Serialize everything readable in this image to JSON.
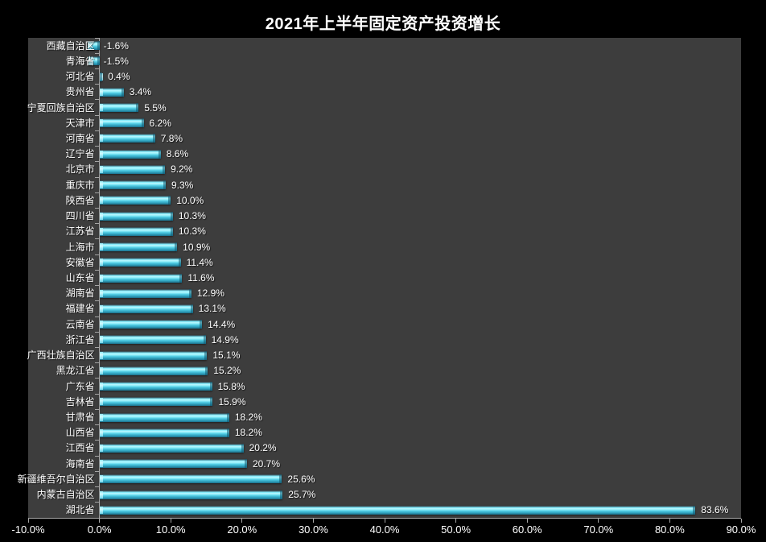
{
  "window": {
    "background": "#000000"
  },
  "chart_data": {
    "type": "bar",
    "orientation": "horizontal",
    "title": "2021年上半年固定资产投资增长",
    "xlabel": "",
    "ylabel": "",
    "grid": false,
    "legend": null,
    "categories": [
      "西藏自治区",
      "青海省",
      "河北省",
      "贵州省",
      "宁夏回族自治区",
      "天津市",
      "河南省",
      "辽宁省",
      "北京市",
      "重庆市",
      "陕西省",
      "四川省",
      "江苏省",
      "上海市",
      "安徽省",
      "山东省",
      "湖南省",
      "福建省",
      "云南省",
      "浙江省",
      "广西壮族自治区",
      "黑龙江省",
      "广东省",
      "吉林省",
      "甘肃省",
      "山西省",
      "江西省",
      "海南省",
      "新疆维吾尔自治区",
      "内蒙古自治区",
      "湖北省"
    ],
    "values": [
      -1.6,
      -1.5,
      0.4,
      3.4,
      5.5,
      6.2,
      7.8,
      8.6,
      9.2,
      9.3,
      10.0,
      10.3,
      10.3,
      10.9,
      11.4,
      11.6,
      12.9,
      13.1,
      14.4,
      14.9,
      15.1,
      15.2,
      15.8,
      15.9,
      18.2,
      18.2,
      20.2,
      20.7,
      25.6,
      25.7,
      83.6
    ],
    "value_labels": [
      "-1.6%",
      "-1.5%",
      "0.4%",
      "3.4%",
      "5.5%",
      "6.2%",
      "7.8%",
      "8.6%",
      "9.2%",
      "9.3%",
      "10.0%",
      "10.3%",
      "10.3%",
      "10.9%",
      "11.4%",
      "11.6%",
      "12.9%",
      "13.1%",
      "14.4%",
      "14.9%",
      "15.1%",
      "15.2%",
      "15.8%",
      "15.9%",
      "18.2%",
      "18.2%",
      "20.2%",
      "20.7%",
      "25.6%",
      "25.7%",
      "83.6%"
    ],
    "x_axis": {
      "min": -10,
      "max": 90,
      "tick_step": 10,
      "tick_values": [
        -10,
        0,
        10,
        20,
        30,
        40,
        50,
        60,
        70,
        80,
        90
      ],
      "tick_labels": [
        "-10.0%",
        "0.0%",
        "10.0%",
        "20.0%",
        "30.0%",
        "40.0%",
        "50.0%",
        "60.0%",
        "70.0%",
        "80.0%",
        "90.0%"
      ]
    },
    "colors": {
      "background": "#000000",
      "plot_background": "#3d3d3d",
      "axis_line": "#a6a6a6",
      "text": "#ffffff",
      "bar_main": "#4ac6de",
      "bar_highlight": "#bdf8ff",
      "bar_dark": "#1d7391"
    }
  }
}
